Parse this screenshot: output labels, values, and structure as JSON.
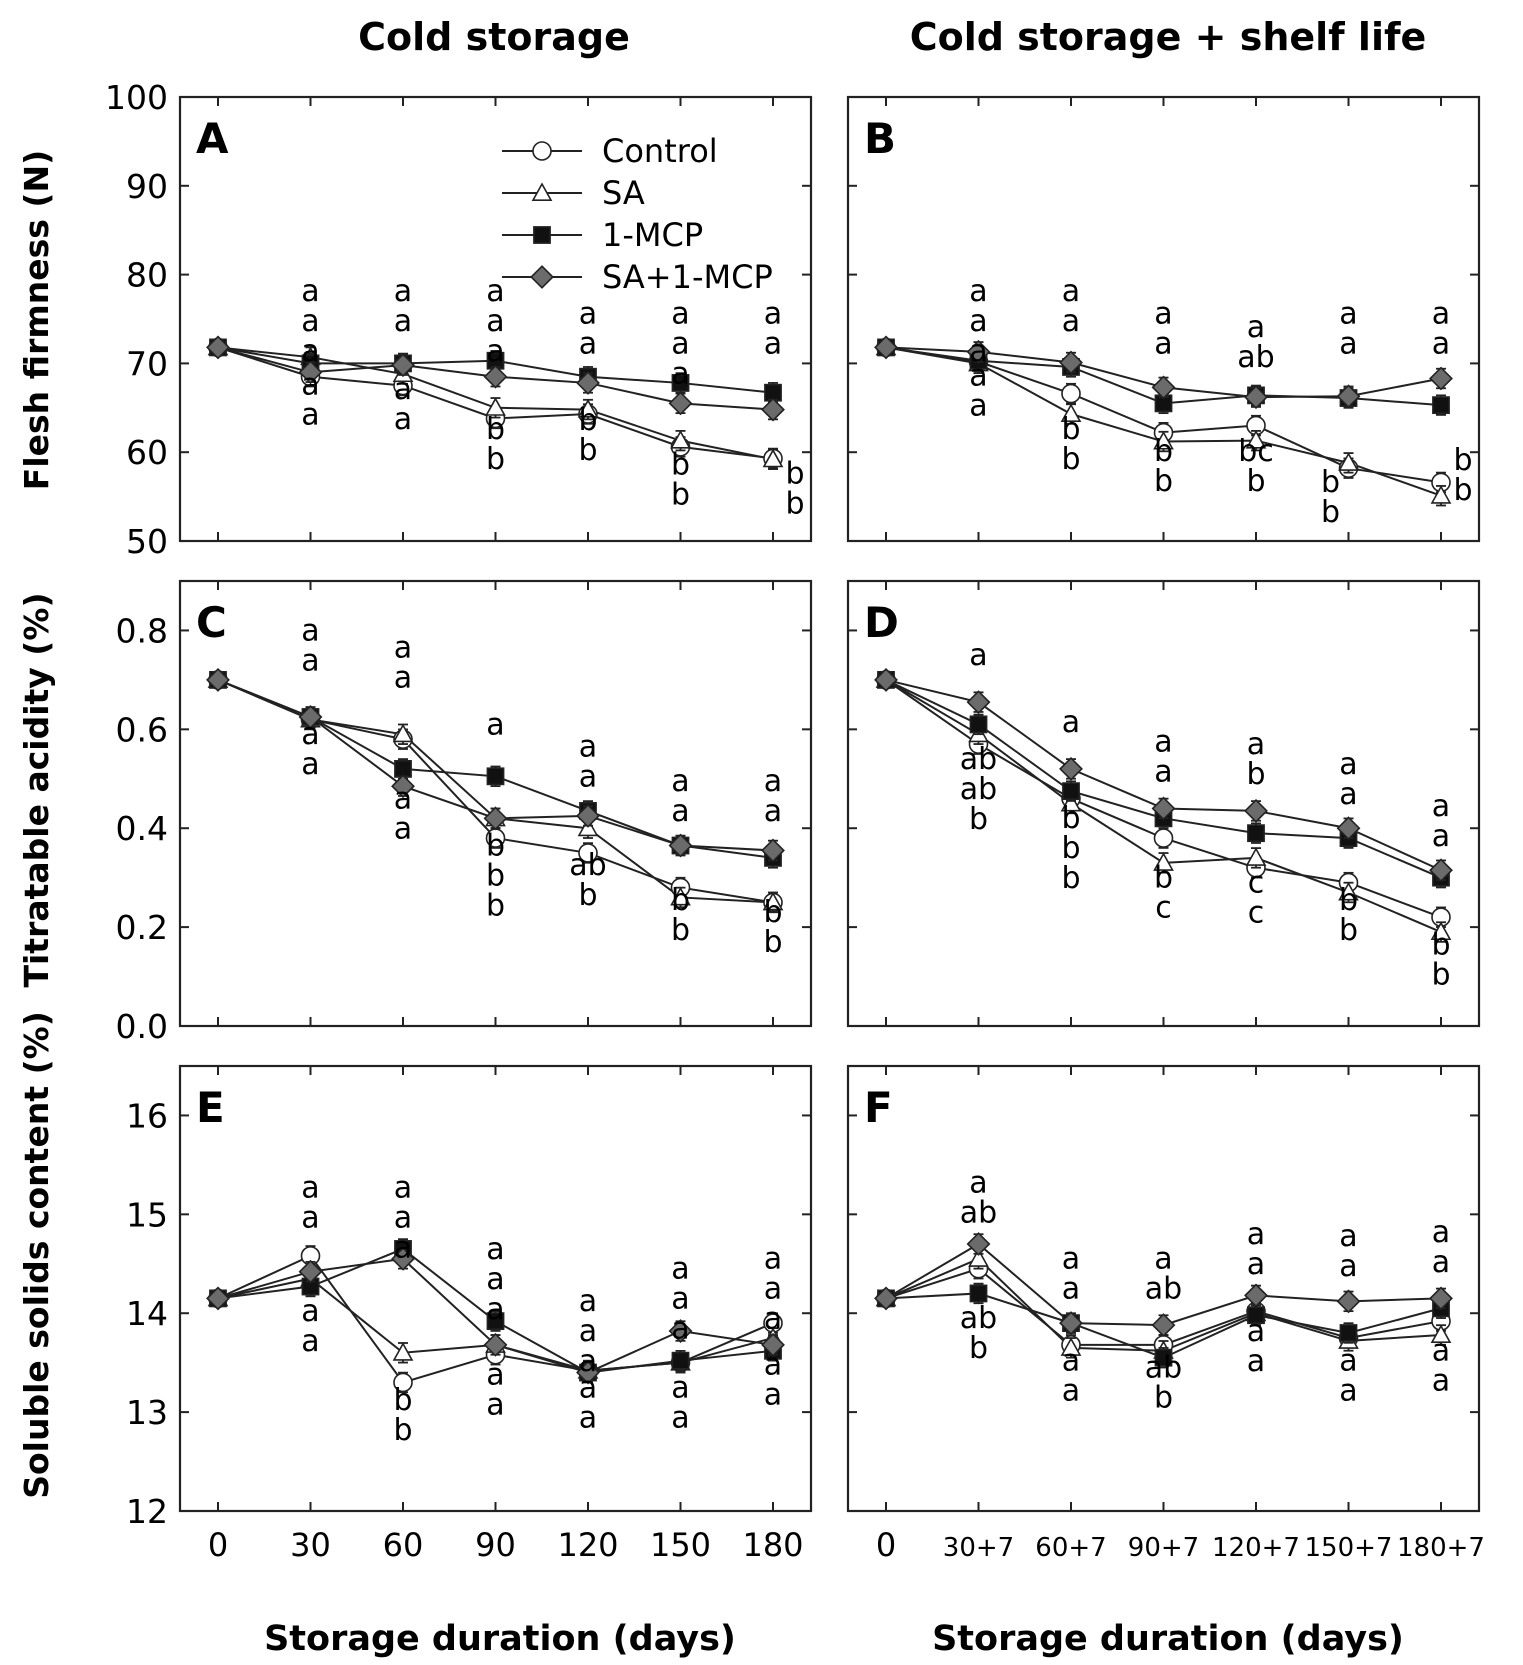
{
  "figure": {
    "col_titles": [
      "Cold storage",
      "Cold storage + shelf life"
    ],
    "xlabels": [
      "Storage duration (days)",
      "Storage duration (days)"
    ],
    "ylabels": [
      "Flesh firmness (N)",
      "Titratable acidity (%)",
      "Soluble solids content (%)"
    ]
  },
  "legend": [
    {
      "name": "Control",
      "marker": "circle",
      "fill": "#ffffff"
    },
    {
      "name": "SA",
      "marker": "triangle",
      "fill": "#ffffff"
    },
    {
      "name": "1-MCP",
      "marker": "square",
      "fill": "#111111"
    },
    {
      "name": "SA+1-MCP",
      "marker": "diamond",
      "fill": "#6b6b6b"
    }
  ],
  "chart_data": [
    {
      "panel": "A",
      "type": "line",
      "ylim": [
        50,
        100
      ],
      "yticks": [
        "50",
        "60",
        "70",
        "80",
        "90",
        "100"
      ],
      "categories": [
        "0",
        "30",
        "60",
        "90",
        "120",
        "150",
        "180"
      ],
      "series": [
        {
          "name": "Control",
          "values": [
            71.8,
            68.5,
            67.5,
            63.8,
            64.3,
            60.6,
            59.3
          ]
        },
        {
          "name": "SA",
          "values": [
            71.8,
            70.7,
            68.8,
            65.0,
            64.8,
            61.3,
            59.2
          ]
        },
        {
          "name": "1-MCP",
          "values": [
            71.8,
            70.0,
            70.0,
            70.3,
            68.5,
            67.8,
            66.7
          ]
        },
        {
          "name": "SA+1-MCP",
          "values": [
            71.8,
            69.0,
            69.8,
            68.5,
            67.8,
            65.5,
            64.8
          ]
        }
      ],
      "annotations": [
        {
          "cat": 1,
          "y": 77.0,
          "lines": [
            "a",
            "a",
            "a"
          ]
        },
        {
          "cat": 1,
          "y": 66.5,
          "lines": [
            "a",
            "a"
          ]
        },
        {
          "cat": 2,
          "y": 77.0,
          "lines": [
            "a",
            "a"
          ]
        },
        {
          "cat": 2,
          "y": 66.0,
          "lines": [
            "a",
            "a"
          ]
        },
        {
          "cat": 3,
          "y": 77.0,
          "lines": [
            "a",
            "a",
            "a"
          ]
        },
        {
          "cat": 3,
          "y": 61.5,
          "lines": [
            "b",
            "b"
          ]
        },
        {
          "cat": 4,
          "y": 74.5,
          "lines": [
            "a",
            "a"
          ]
        },
        {
          "cat": 4,
          "y": 62.5,
          "lines": [
            "b",
            "b"
          ]
        },
        {
          "cat": 5,
          "y": 74.5,
          "lines": [
            "a",
            "a",
            "a"
          ]
        },
        {
          "cat": 5,
          "y": 57.5,
          "lines": [
            "b",
            "b"
          ]
        },
        {
          "cat": 6,
          "y": 74.5,
          "lines": [
            "a",
            "a"
          ]
        },
        {
          "cat": 6,
          "y": 56.5,
          "lines": [
            "b",
            "b"
          ],
          "dx": 22
        }
      ]
    },
    {
      "panel": "B",
      "type": "line",
      "ylim": [
        50,
        100
      ],
      "yticks": [
        "50",
        "60",
        "70",
        "80",
        "90",
        "100"
      ],
      "categories": [
        "0",
        "30+7",
        "60+7",
        "90+7",
        "120+7",
        "150+7",
        "180+7"
      ],
      "series": [
        {
          "name": "Control",
          "values": [
            71.8,
            70.2,
            66.6,
            62.2,
            63.0,
            58.2,
            56.6
          ]
        },
        {
          "name": "SA",
          "values": [
            71.8,
            70.0,
            64.3,
            61.2,
            61.3,
            58.8,
            55.1
          ]
        },
        {
          "name": "1-MCP",
          "values": [
            71.8,
            70.3,
            69.6,
            65.5,
            66.4,
            66.1,
            65.3
          ]
        },
        {
          "name": "SA+1-MCP",
          "values": [
            71.8,
            71.3,
            70.1,
            67.3,
            66.2,
            66.3,
            68.3
          ]
        }
      ],
      "annotations": [
        {
          "cat": 1,
          "y": 77.0,
          "lines": [
            "a",
            "a",
            "a"
          ]
        },
        {
          "cat": 1,
          "y": 67.5,
          "lines": [
            "a",
            "a"
          ]
        },
        {
          "cat": 2,
          "y": 77.0,
          "lines": [
            "a",
            "a"
          ]
        },
        {
          "cat": 2,
          "y": 61.5,
          "lines": [
            "b",
            "b"
          ]
        },
        {
          "cat": 3,
          "y": 74.5,
          "lines": [
            "a",
            "a"
          ]
        },
        {
          "cat": 3,
          "y": 59.0,
          "lines": [
            "b",
            "b"
          ]
        },
        {
          "cat": 4,
          "y": 73.0,
          "lines": [
            "a",
            "ab"
          ]
        },
        {
          "cat": 4,
          "y": 59.0,
          "lines": [
            "bc",
            "b"
          ]
        },
        {
          "cat": 5,
          "y": 74.5,
          "lines": [
            "a",
            "a"
          ]
        },
        {
          "cat": 5,
          "y": 55.5,
          "lines": [
            "b",
            "b"
          ],
          "dx": -18
        },
        {
          "cat": 6,
          "y": 74.5,
          "lines": [
            "a",
            "a"
          ]
        },
        {
          "cat": 6,
          "y": 58.0,
          "lines": [
            "b",
            "b"
          ],
          "dx": 22
        }
      ]
    },
    {
      "panel": "C",
      "type": "line",
      "ylim": [
        0.0,
        0.9
      ],
      "yticks": [
        "0.0",
        "0.2",
        "0.4",
        "0.6",
        "0.8"
      ],
      "categories": [
        "0",
        "30",
        "60",
        "90",
        "120",
        "150",
        "180"
      ],
      "series": [
        {
          "name": "Control",
          "values": [
            0.7,
            0.62,
            0.58,
            0.38,
            0.35,
            0.28,
            0.25
          ]
        },
        {
          "name": "SA",
          "values": [
            0.7,
            0.62,
            0.59,
            0.42,
            0.4,
            0.26,
            0.25
          ]
        },
        {
          "name": "1-MCP",
          "values": [
            0.7,
            0.625,
            0.52,
            0.505,
            0.435,
            0.365,
            0.34
          ]
        },
        {
          "name": "SA+1-MCP",
          "values": [
            0.7,
            0.625,
            0.485,
            0.42,
            0.425,
            0.365,
            0.355
          ]
        }
      ],
      "annotations": [
        {
          "cat": 1,
          "y": 0.78,
          "lines": [
            "a",
            "a"
          ]
        },
        {
          "cat": 1,
          "y": 0.57,
          "lines": [
            "a",
            "a"
          ]
        },
        {
          "cat": 2,
          "y": 0.745,
          "lines": [
            "a",
            "a"
          ]
        },
        {
          "cat": 2,
          "y": 0.44,
          "lines": [
            "a",
            "a"
          ]
        },
        {
          "cat": 3,
          "y": 0.59,
          "lines": [
            "a"
          ]
        },
        {
          "cat": 3,
          "y": 0.345,
          "lines": [
            "b",
            "b",
            "b"
          ]
        },
        {
          "cat": 4,
          "y": 0.545,
          "lines": [
            "a",
            "a"
          ]
        },
        {
          "cat": 4,
          "y": 0.305,
          "lines": [
            "ab",
            "b"
          ]
        },
        {
          "cat": 5,
          "y": 0.475,
          "lines": [
            "a",
            "a"
          ]
        },
        {
          "cat": 5,
          "y": 0.235,
          "lines": [
            "b",
            "b"
          ]
        },
        {
          "cat": 6,
          "y": 0.475,
          "lines": [
            "a",
            "a"
          ]
        },
        {
          "cat": 6,
          "y": 0.21,
          "lines": [
            "b",
            "b"
          ]
        }
      ]
    },
    {
      "panel": "D",
      "type": "line",
      "ylim": [
        0.0,
        0.9
      ],
      "yticks": [
        "0.0",
        "0.2",
        "0.4",
        "0.6",
        "0.8"
      ],
      "categories": [
        "0",
        "30+7",
        "60+7",
        "90+7",
        "120+7",
        "150+7",
        "180+7"
      ],
      "series": [
        {
          "name": "Control",
          "values": [
            0.7,
            0.57,
            0.46,
            0.38,
            0.32,
            0.29,
            0.22
          ]
        },
        {
          "name": "SA",
          "values": [
            0.7,
            0.59,
            0.45,
            0.33,
            0.34,
            0.27,
            0.19
          ]
        },
        {
          "name": "1-MCP",
          "values": [
            0.7,
            0.61,
            0.475,
            0.42,
            0.39,
            0.38,
            0.3
          ]
        },
        {
          "name": "SA+1-MCP",
          "values": [
            0.7,
            0.655,
            0.52,
            0.44,
            0.435,
            0.4,
            0.315
          ]
        }
      ],
      "annotations": [
        {
          "cat": 1,
          "y": 0.73,
          "lines": [
            "a"
          ]
        },
        {
          "cat": 1,
          "y": 0.52,
          "lines": [
            "ab",
            "ab",
            "b"
          ]
        },
        {
          "cat": 2,
          "y": 0.595,
          "lines": [
            "a"
          ]
        },
        {
          "cat": 2,
          "y": 0.4,
          "lines": [
            "b",
            "b",
            "b"
          ]
        },
        {
          "cat": 3,
          "y": 0.555,
          "lines": [
            "a",
            "a"
          ]
        },
        {
          "cat": 3,
          "y": 0.28,
          "lines": [
            "b",
            "c"
          ]
        },
        {
          "cat": 4,
          "y": 0.55,
          "lines": [
            "a",
            "b"
          ]
        },
        {
          "cat": 4,
          "y": 0.27,
          "lines": [
            "c",
            "c"
          ]
        },
        {
          "cat": 5,
          "y": 0.51,
          "lines": [
            "a",
            "a"
          ]
        },
        {
          "cat": 5,
          "y": 0.235,
          "lines": [
            "b",
            "b"
          ]
        },
        {
          "cat": 6,
          "y": 0.425,
          "lines": [
            "a",
            "a"
          ]
        },
        {
          "cat": 6,
          "y": 0.145,
          "lines": [
            "b",
            "b"
          ]
        }
      ]
    },
    {
      "panel": "E",
      "type": "line",
      "ylim": [
        12,
        16.5
      ],
      "yticks": [
        "12",
        "13",
        "14",
        "15",
        "16"
      ],
      "categories": [
        "0",
        "30",
        "60",
        "90",
        "120",
        "150",
        "180"
      ],
      "series": [
        {
          "name": "Control",
          "values": [
            14.15,
            14.58,
            13.3,
            13.58,
            13.42,
            13.5,
            13.9
          ]
        },
        {
          "name": "SA",
          "values": [
            14.15,
            14.35,
            13.6,
            13.68,
            13.42,
            13.5,
            13.75
          ]
        },
        {
          "name": "1-MCP",
          "values": [
            14.15,
            14.27,
            14.65,
            13.92,
            13.4,
            13.52,
            13.62
          ]
        },
        {
          "name": "SA+1-MCP",
          "values": [
            14.15,
            14.42,
            14.55,
            13.68,
            13.4,
            13.82,
            13.68
          ]
        }
      ],
      "annotations": [
        {
          "cat": 1,
          "y": 15.17,
          "lines": [
            "a",
            "a"
          ]
        },
        {
          "cat": 1,
          "y": 13.92,
          "lines": [
            "a",
            "a"
          ]
        },
        {
          "cat": 2,
          "y": 15.17,
          "lines": [
            "a",
            "a",
            "a"
          ]
        },
        {
          "cat": 2,
          "y": 13.02,
          "lines": [
            "b",
            "b"
          ]
        },
        {
          "cat": 3,
          "y": 14.55,
          "lines": [
            "a",
            "a",
            "a"
          ]
        },
        {
          "cat": 3,
          "y": 13.28,
          "lines": [
            "a",
            "a"
          ]
        },
        {
          "cat": 4,
          "y": 14.02,
          "lines": [
            "a",
            "a",
            "a"
          ]
        },
        {
          "cat": 4,
          "y": 13.15,
          "lines": [
            "a",
            "a"
          ]
        },
        {
          "cat": 5,
          "y": 14.35,
          "lines": [
            "a",
            "a",
            "a"
          ]
        },
        {
          "cat": 5,
          "y": 13.15,
          "lines": [
            "a",
            "a"
          ]
        },
        {
          "cat": 6,
          "y": 14.45,
          "lines": [
            "a",
            "a",
            "a"
          ]
        },
        {
          "cat": 6,
          "y": 13.38,
          "lines": [
            "a",
            "a"
          ]
        }
      ]
    },
    {
      "panel": "F",
      "type": "line",
      "ylim": [
        12,
        16.5
      ],
      "yticks": [
        "12",
        "13",
        "14",
        "15",
        "16"
      ],
      "categories": [
        "0",
        "30+7",
        "60+7",
        "90+7",
        "120+7",
        "150+7",
        "180+7"
      ],
      "series": [
        {
          "name": "Control",
          "values": [
            14.15,
            14.45,
            13.68,
            13.68,
            14.02,
            13.75,
            13.92
          ]
        },
        {
          "name": "SA",
          "values": [
            14.15,
            14.55,
            13.65,
            13.62,
            14.0,
            13.72,
            13.78
          ]
        },
        {
          "name": "1-MCP",
          "values": [
            14.15,
            14.2,
            13.9,
            13.55,
            13.98,
            13.8,
            14.05
          ]
        },
        {
          "name": "SA+1-MCP",
          "values": [
            14.15,
            14.7,
            13.9,
            13.88,
            14.18,
            14.12,
            14.15
          ]
        }
      ],
      "annotations": [
        {
          "cat": 1,
          "y": 15.22,
          "lines": [
            "a",
            "ab"
          ]
        },
        {
          "cat": 1,
          "y": 13.85,
          "lines": [
            "ab",
            "b"
          ]
        },
        {
          "cat": 2,
          "y": 14.45,
          "lines": [
            "a",
            "a"
          ]
        },
        {
          "cat": 2,
          "y": 13.42,
          "lines": [
            "a",
            "a"
          ]
        },
        {
          "cat": 3,
          "y": 14.45,
          "lines": [
            "a",
            "ab"
          ]
        },
        {
          "cat": 3,
          "y": 13.35,
          "lines": [
            "ab",
            "b"
          ]
        },
        {
          "cat": 4,
          "y": 14.7,
          "lines": [
            "a",
            "a"
          ]
        },
        {
          "cat": 4,
          "y": 13.72,
          "lines": [
            "a",
            "a"
          ]
        },
        {
          "cat": 5,
          "y": 14.68,
          "lines": [
            "a",
            "a"
          ]
        },
        {
          "cat": 5,
          "y": 13.42,
          "lines": [
            "a",
            "a"
          ]
        },
        {
          "cat": 6,
          "y": 14.72,
          "lines": [
            "a",
            "a"
          ]
        },
        {
          "cat": 6,
          "y": 13.52,
          "lines": [
            "a",
            "a"
          ]
        }
      ]
    }
  ]
}
